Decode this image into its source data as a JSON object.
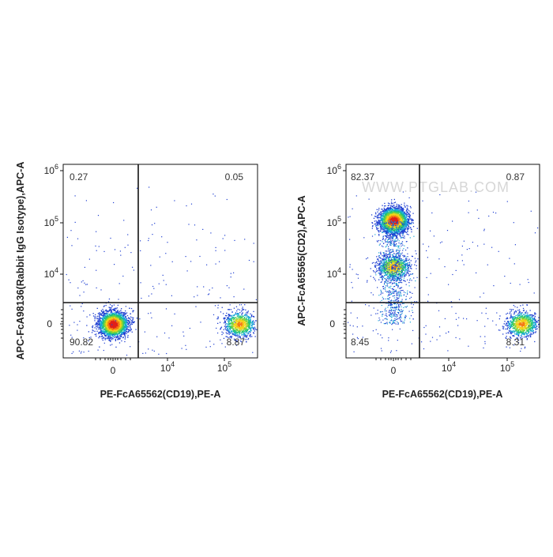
{
  "chart_data": [
    {
      "type": "scatter",
      "subtype": "flow-cytometry-density-dot-plot",
      "xlabel": "PE-FcA65562(CD19),PE-A",
      "ylabel": "APC-FcA98136(Rabbit IgG Isotype),APC-A",
      "x_scale": "biexponential",
      "y_scale": "biexponential",
      "x_ticks": [
        "0",
        "10^4",
        "10^5"
      ],
      "y_ticks": [
        "0",
        "10^4",
        "10^5",
        "10^6"
      ],
      "gate": {
        "x": 3000,
        "y": 3000
      },
      "quadrants": {
        "top_left": "0.27",
        "top_right": "0.05",
        "bottom_left": "90.82",
        "bottom_right": "8.87"
      },
      "populations": [
        {
          "name": "",
          "x_center": 0,
          "y_center": 0,
          "density": "high"
        },
        {
          "name": "",
          "x_center": 80000,
          "y_center": 0,
          "density": "medium"
        }
      ],
      "watermark": ""
    },
    {
      "type": "scatter",
      "subtype": "flow-cytometry-density-dot-plot",
      "xlabel": "PE-FcA65562(CD19),PE-A",
      "ylabel": "APC-FcA65565(CD2),APC-A",
      "x_scale": "biexponential",
      "y_scale": "biexponential",
      "x_ticks": [
        "0",
        "10^4",
        "10^5"
      ],
      "y_ticks": [
        "0",
        "10^4",
        "10^5",
        "10^6"
      ],
      "gate": {
        "x": 3000,
        "y": 3000
      },
      "quadrants": {
        "top_left": "82.37",
        "top_right": "0.87",
        "bottom_left": "8.45",
        "bottom_right": "8.31"
      },
      "populations": [
        {
          "name": "",
          "x_center": 0,
          "y_center": 50000,
          "density": "high"
        },
        {
          "name": "",
          "x_center": 0,
          "y_center": 6000,
          "density": "medium"
        },
        {
          "name": "",
          "x_center": 80000,
          "y_center": 0,
          "density": "medium"
        }
      ],
      "watermark": "WWW.PTGLAB.COM"
    }
  ]
}
